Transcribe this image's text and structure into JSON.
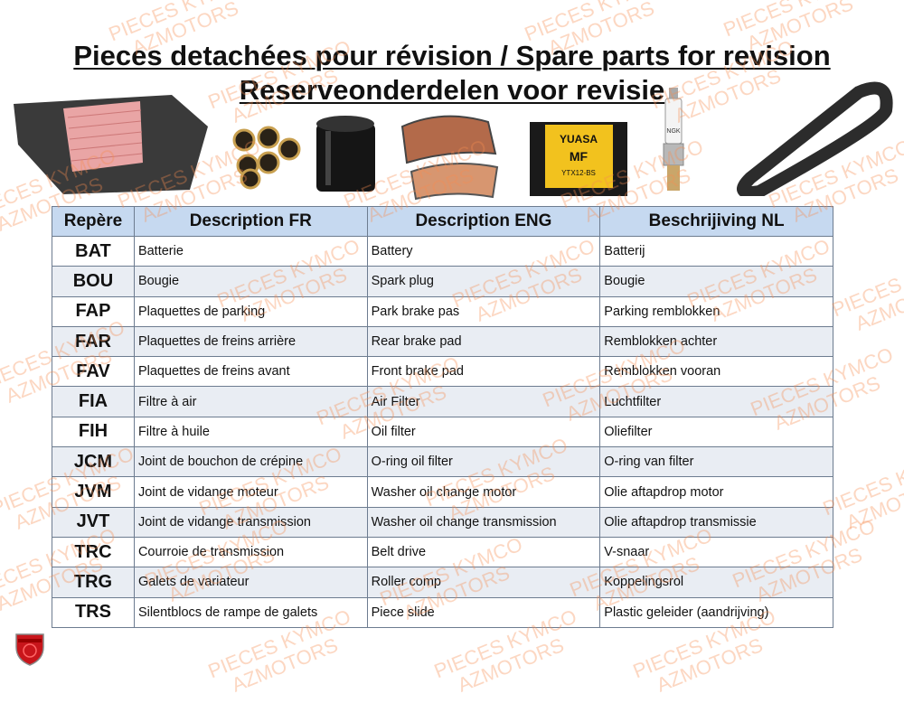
{
  "title_line1": "Pieces detachées pour révision / Spare parts for revision",
  "title_line2": "Reserveonderdelen voor revisie",
  "watermark": [
    "PIECES KYMCO",
    "AZMOTORS"
  ],
  "logo_text": "AZMOTORS",
  "product_images": [
    "air-filter",
    "roller-weights",
    "oil-filter",
    "brake-pads",
    "battery",
    "spark-plug",
    "drive-belt"
  ],
  "battery_label": "YUASA MF YTX12-BS",
  "spark_plug_label": "NGK",
  "colors": {
    "header_bg": "#c6d9f0",
    "alt_row_bg": "#e9edf3",
    "watermark": "#f58c50"
  },
  "table": {
    "headers": [
      "Repère",
      "Description FR",
      "Description ENG",
      "Beschrijiving NL"
    ],
    "rows": [
      [
        "BAT",
        "Batterie",
        "Battery",
        "Batterij"
      ],
      [
        "BOU",
        "Bougie",
        "Spark plug",
        "Bougie"
      ],
      [
        "FAP",
        "Plaquettes de parking",
        "Park brake pas",
        "Parking remblokken"
      ],
      [
        "FAR",
        "Plaquettes de freins arrière",
        "Rear brake pad",
        "Remblokken achter"
      ],
      [
        "FAV",
        "Plaquettes de freins avant",
        "Front brake pad",
        "Remblokken vooran"
      ],
      [
        "FIA",
        "Filtre à air",
        "Air Filter",
        "Luchtfilter"
      ],
      [
        "FIH",
        "Filtre à huile",
        "Oil filter",
        "Oliefilter"
      ],
      [
        "JCM",
        "Joint de bouchon de crépine",
        "O-ring oil filter",
        "O-ring van filter"
      ],
      [
        "JVM",
        "Joint de vidange moteur",
        "Washer oil change motor",
        "Olie aftapdrop motor"
      ],
      [
        "JVT",
        "Joint de vidange transmission",
        "Washer oil change transmission",
        "Olie aftapdrop transmissie"
      ],
      [
        "TRC",
        "Courroie de transmission",
        "Belt drive",
        "V-snaar"
      ],
      [
        "TRG",
        "Galets de variateur",
        "Roller comp",
        "Koppelingsrol"
      ],
      [
        "TRS",
        "Silentblocs de rampe de galets",
        "Piece slide",
        "Plastic geleider (aandrijving)"
      ]
    ]
  }
}
